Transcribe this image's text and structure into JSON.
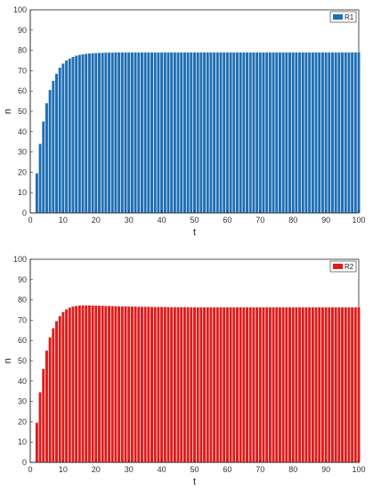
{
  "chart_data": [
    {
      "type": "bar",
      "xlabel": "t",
      "ylabel": "n",
      "xlim": [
        0,
        100
      ],
      "ylim": [
        0,
        100
      ],
      "xticks": [
        0,
        10,
        20,
        30,
        40,
        50,
        60,
        70,
        80,
        90,
        100
      ],
      "yticks": [
        0,
        10,
        20,
        30,
        40,
        50,
        60,
        70,
        80,
        90,
        100
      ],
      "legend_position": "top-right",
      "series": [
        {
          "name": "R1",
          "color": "#1f6fb4",
          "x_start": 1,
          "values": [
            0,
            19.5,
            34,
            45,
            54,
            60.5,
            65,
            68.5,
            71.5,
            73.5,
            75,
            76,
            76.8,
            77.4,
            77.8,
            78.1,
            78.3,
            78.5,
            78.6,
            78.7,
            78.8,
            78.8,
            78.9,
            78.9,
            78.9,
            79,
            79,
            79,
            79,
            79,
            79,
            79,
            79,
            79,
            79,
            79,
            79,
            79,
            79,
            79,
            79,
            79,
            79,
            79,
            79,
            79,
            79,
            79,
            79,
            79,
            79,
            79,
            79,
            79,
            79,
            79,
            79,
            79,
            79,
            79,
            79,
            79,
            79,
            79,
            79,
            79,
            79,
            79,
            79,
            79,
            79,
            79,
            79,
            79,
            79,
            79,
            79,
            79,
            79,
            79,
            79,
            79,
            79,
            79,
            79,
            79,
            79,
            79,
            79,
            79,
            79,
            79,
            79,
            79,
            79,
            79,
            79,
            79,
            79,
            79
          ]
        }
      ]
    },
    {
      "type": "bar",
      "xlabel": "t",
      "ylabel": "n",
      "xlim": [
        0,
        100
      ],
      "ylim": [
        0,
        100
      ],
      "xticks": [
        0,
        10,
        20,
        30,
        40,
        50,
        60,
        70,
        80,
        90,
        100
      ],
      "yticks": [
        0,
        10,
        20,
        30,
        40,
        50,
        60,
        70,
        80,
        90,
        100
      ],
      "legend_position": "top-right",
      "series": [
        {
          "name": "R2",
          "color": "#dd1c1c",
          "x_start": 1,
          "values": [
            0,
            19.5,
            34.5,
            46,
            55,
            61.5,
            66,
            69.5,
            72,
            74,
            75.3,
            76.2,
            76.7,
            77,
            77.2,
            77.3,
            77.3,
            77.3,
            77.2,
            77.2,
            77.1,
            77.1,
            77,
            77,
            76.9,
            76.9,
            76.8,
            76.8,
            76.8,
            76.7,
            76.7,
            76.7,
            76.6,
            76.6,
            76.6,
            76.6,
            76.5,
            76.5,
            76.5,
            76.5,
            76.5,
            76.4,
            76.4,
            76.4,
            76.4,
            76.4,
            76.4,
            76.4,
            76.3,
            76.3,
            76.3,
            76.3,
            76.3,
            76.3,
            76.3,
            76.3,
            76.3,
            76.3,
            76.3,
            76.3,
            76.3,
            76.3,
            76.3,
            76.3,
            76.3,
            76.3,
            76.3,
            76.3,
            76.3,
            76.3,
            76.3,
            76.3,
            76.3,
            76.3,
            76.3,
            76.3,
            76.3,
            76.3,
            76.3,
            76.3,
            76.3,
            76.3,
            76.3,
            76.3,
            76.3,
            76.3,
            76.3,
            76.3,
            76.3,
            76.3,
            76.3,
            76.3,
            76.3,
            76.3,
            76.3,
            76.3,
            76.3,
            76.3,
            76.3,
            76.3
          ]
        }
      ]
    }
  ]
}
